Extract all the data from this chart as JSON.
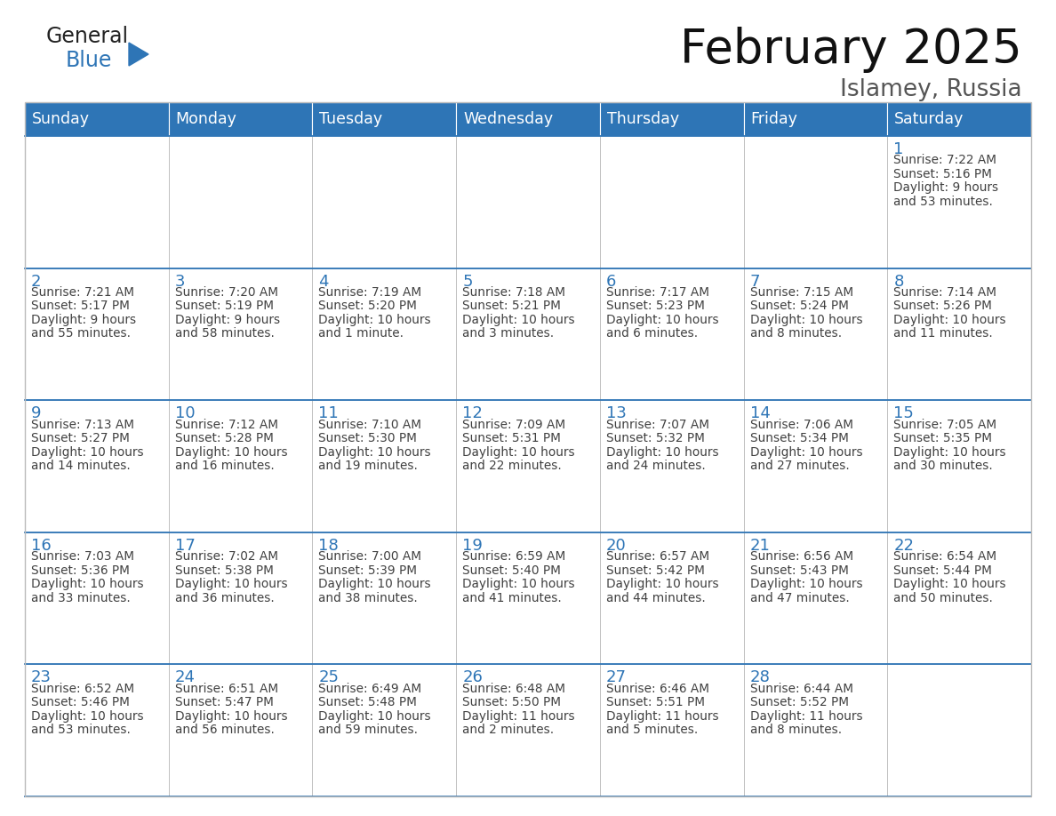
{
  "title": "February 2025",
  "subtitle": "Islamey, Russia",
  "header_bg": "#2E75B6",
  "header_text_color": "#FFFFFF",
  "cell_bg_white": "#FFFFFF",
  "day_number_color": "#2E75B6",
  "text_color": "#404040",
  "border_color": "#BBBBBB",
  "days_of_week": [
    "Sunday",
    "Monday",
    "Tuesday",
    "Wednesday",
    "Thursday",
    "Friday",
    "Saturday"
  ],
  "calendar_data": [
    [
      null,
      null,
      null,
      null,
      null,
      null,
      {
        "day": 1,
        "sunrise": "7:22 AM",
        "sunset": "5:16 PM",
        "daylight_line1": "9 hours",
        "daylight_line2": "and 53 minutes."
      }
    ],
    [
      {
        "day": 2,
        "sunrise": "7:21 AM",
        "sunset": "5:17 PM",
        "daylight_line1": "9 hours",
        "daylight_line2": "and 55 minutes."
      },
      {
        "day": 3,
        "sunrise": "7:20 AM",
        "sunset": "5:19 PM",
        "daylight_line1": "9 hours",
        "daylight_line2": "and 58 minutes."
      },
      {
        "day": 4,
        "sunrise": "7:19 AM",
        "sunset": "5:20 PM",
        "daylight_line1": "10 hours",
        "daylight_line2": "and 1 minute."
      },
      {
        "day": 5,
        "sunrise": "7:18 AM",
        "sunset": "5:21 PM",
        "daylight_line1": "10 hours",
        "daylight_line2": "and 3 minutes."
      },
      {
        "day": 6,
        "sunrise": "7:17 AM",
        "sunset": "5:23 PM",
        "daylight_line1": "10 hours",
        "daylight_line2": "and 6 minutes."
      },
      {
        "day": 7,
        "sunrise": "7:15 AM",
        "sunset": "5:24 PM",
        "daylight_line1": "10 hours",
        "daylight_line2": "and 8 minutes."
      },
      {
        "day": 8,
        "sunrise": "7:14 AM",
        "sunset": "5:26 PM",
        "daylight_line1": "10 hours",
        "daylight_line2": "and 11 minutes."
      }
    ],
    [
      {
        "day": 9,
        "sunrise": "7:13 AM",
        "sunset": "5:27 PM",
        "daylight_line1": "10 hours",
        "daylight_line2": "and 14 minutes."
      },
      {
        "day": 10,
        "sunrise": "7:12 AM",
        "sunset": "5:28 PM",
        "daylight_line1": "10 hours",
        "daylight_line2": "and 16 minutes."
      },
      {
        "day": 11,
        "sunrise": "7:10 AM",
        "sunset": "5:30 PM",
        "daylight_line1": "10 hours",
        "daylight_line2": "and 19 minutes."
      },
      {
        "day": 12,
        "sunrise": "7:09 AM",
        "sunset": "5:31 PM",
        "daylight_line1": "10 hours",
        "daylight_line2": "and 22 minutes."
      },
      {
        "day": 13,
        "sunrise": "7:07 AM",
        "sunset": "5:32 PM",
        "daylight_line1": "10 hours",
        "daylight_line2": "and 24 minutes."
      },
      {
        "day": 14,
        "sunrise": "7:06 AM",
        "sunset": "5:34 PM",
        "daylight_line1": "10 hours",
        "daylight_line2": "and 27 minutes."
      },
      {
        "day": 15,
        "sunrise": "7:05 AM",
        "sunset": "5:35 PM",
        "daylight_line1": "10 hours",
        "daylight_line2": "and 30 minutes."
      }
    ],
    [
      {
        "day": 16,
        "sunrise": "7:03 AM",
        "sunset": "5:36 PM",
        "daylight_line1": "10 hours",
        "daylight_line2": "and 33 minutes."
      },
      {
        "day": 17,
        "sunrise": "7:02 AM",
        "sunset": "5:38 PM",
        "daylight_line1": "10 hours",
        "daylight_line2": "and 36 minutes."
      },
      {
        "day": 18,
        "sunrise": "7:00 AM",
        "sunset": "5:39 PM",
        "daylight_line1": "10 hours",
        "daylight_line2": "and 38 minutes."
      },
      {
        "day": 19,
        "sunrise": "6:59 AM",
        "sunset": "5:40 PM",
        "daylight_line1": "10 hours",
        "daylight_line2": "and 41 minutes."
      },
      {
        "day": 20,
        "sunrise": "6:57 AM",
        "sunset": "5:42 PM",
        "daylight_line1": "10 hours",
        "daylight_line2": "and 44 minutes."
      },
      {
        "day": 21,
        "sunrise": "6:56 AM",
        "sunset": "5:43 PM",
        "daylight_line1": "10 hours",
        "daylight_line2": "and 47 minutes."
      },
      {
        "day": 22,
        "sunrise": "6:54 AM",
        "sunset": "5:44 PM",
        "daylight_line1": "10 hours",
        "daylight_line2": "and 50 minutes."
      }
    ],
    [
      {
        "day": 23,
        "sunrise": "6:52 AM",
        "sunset": "5:46 PM",
        "daylight_line1": "10 hours",
        "daylight_line2": "and 53 minutes."
      },
      {
        "day": 24,
        "sunrise": "6:51 AM",
        "sunset": "5:47 PM",
        "daylight_line1": "10 hours",
        "daylight_line2": "and 56 minutes."
      },
      {
        "day": 25,
        "sunrise": "6:49 AM",
        "sunset": "5:48 PM",
        "daylight_line1": "10 hours",
        "daylight_line2": "and 59 minutes."
      },
      {
        "day": 26,
        "sunrise": "6:48 AM",
        "sunset": "5:50 PM",
        "daylight_line1": "11 hours",
        "daylight_line2": "and 2 minutes."
      },
      {
        "day": 27,
        "sunrise": "6:46 AM",
        "sunset": "5:51 PM",
        "daylight_line1": "11 hours",
        "daylight_line2": "and 5 minutes."
      },
      {
        "day": 28,
        "sunrise": "6:44 AM",
        "sunset": "5:52 PM",
        "daylight_line1": "11 hours",
        "daylight_line2": "and 8 minutes."
      },
      null
    ]
  ],
  "logo_color_general": "#222222",
  "logo_color_blue": "#2E75B6",
  "logo_triangle_color": "#2E75B6",
  "fig_width": 11.88,
  "fig_height": 9.18,
  "dpi": 100
}
